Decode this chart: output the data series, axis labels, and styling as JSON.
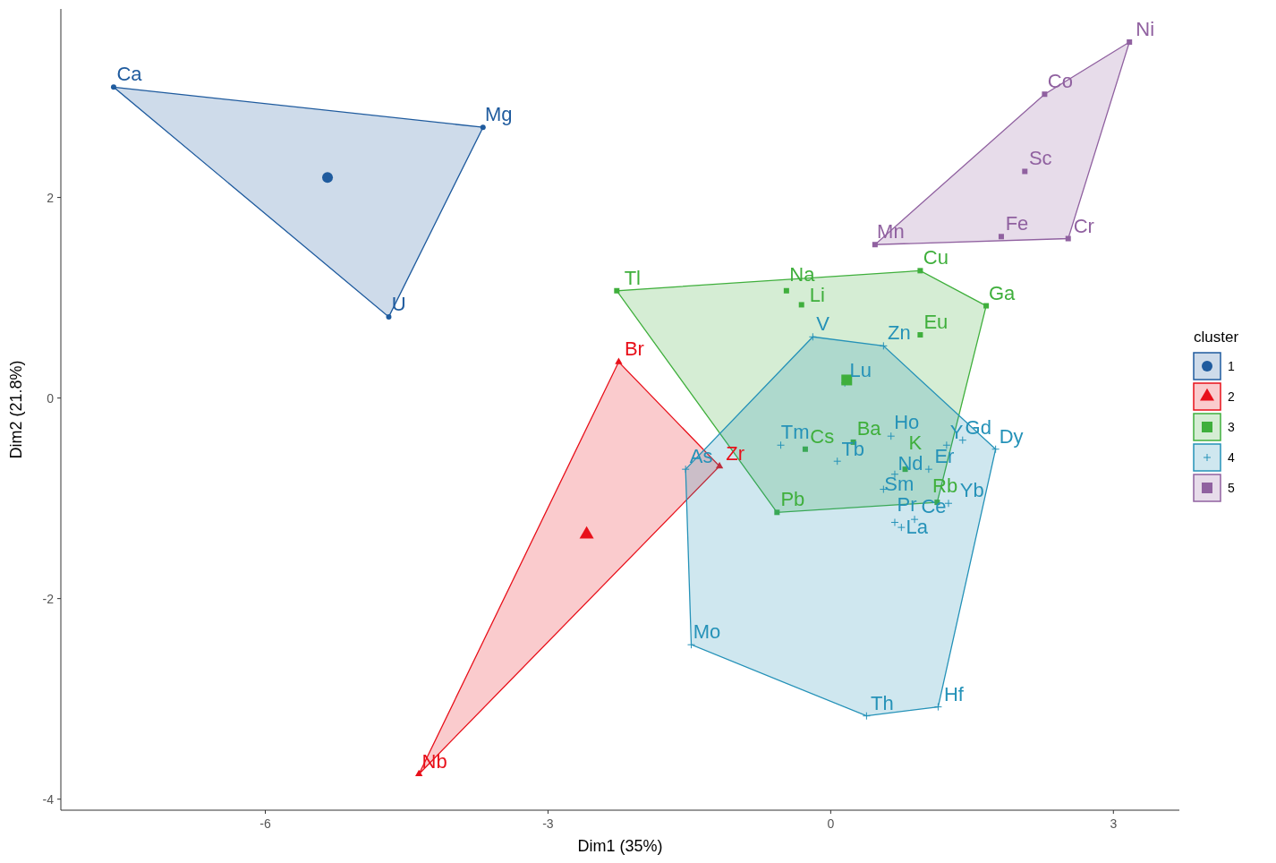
{
  "chart_data": {
    "type": "scatter",
    "xlabel": "Dim1 (35%)",
    "ylabel": "Dim2 (21.8%)",
    "legend_title": "cluster",
    "legend": "right",
    "grid": false,
    "xlim": [
      -8.17,
      3.7
    ],
    "ylim": [
      -4.11,
      3.88
    ],
    "xticks": [
      -6,
      -3,
      0,
      3
    ],
    "yticks": [
      -4,
      -2,
      0,
      2
    ],
    "series": [
      {
        "name": "1",
        "color": "#1f5b9e",
        "marker": "circle",
        "x": [
          -7.61,
          -3.69,
          -4.69
        ],
        "values": [
          3.1,
          2.7,
          0.81
        ],
        "value_labels": [
          "Ca",
          "Mg",
          "U"
        ]
      },
      {
        "name": "2",
        "color": "#e8101a",
        "marker": "triangle",
        "x": [
          -2.25,
          -1.18,
          -4.37
        ],
        "values": [
          0.36,
          -0.68,
          -3.75
        ],
        "value_labels": [
          "Br",
          "Zr",
          "Nb"
        ]
      },
      {
        "name": "3",
        "color": "#3faf3c",
        "marker": "square",
        "x": [
          -2.27,
          -0.47,
          -0.31,
          0.95,
          1.65,
          0.95,
          -0.27,
          0.24,
          0.79,
          1.13,
          -0.57
        ],
        "values": [
          1.07,
          1.07,
          0.93,
          1.27,
          0.92,
          0.63,
          -0.51,
          -0.44,
          -0.71,
          -1.04,
          -1.14
        ],
        "value_labels": [
          "Tl",
          "Na",
          "Li",
          "Cu",
          "Ga",
          "Eu",
          "Cs",
          "Ba",
          "K",
          "Rb",
          "Pb"
        ]
      },
      {
        "name": "4",
        "color": "#2592b8",
        "marker": "cross",
        "x": [
          -0.19,
          0.56,
          1.4,
          1.75,
          1.23,
          0.64,
          -0.53,
          0.07,
          0.15,
          0.56,
          0.68,
          1.04,
          -1.54,
          1.25,
          0.68,
          0.89,
          0.75,
          -1.48,
          0.38,
          1.14
        ],
        "values": [
          0.61,
          0.52,
          -0.42,
          -0.51,
          -0.47,
          -0.38,
          -0.47,
          -0.63,
          0.15,
          -0.91,
          -0.76,
          -0.71,
          -0.71,
          -1.05,
          -1.24,
          -1.21,
          -1.29,
          -2.46,
          -3.17,
          -3.08
        ],
        "value_labels": [
          "V",
          "Zn",
          "Gd",
          "Dy",
          "Y",
          "Ho",
          "Tm",
          "Tb",
          "Lu",
          "Sm",
          "Nd",
          "Er",
          "As",
          "Yb",
          "Pr",
          "Ce",
          "La",
          "Mo",
          "Th",
          "Hf"
        ]
      },
      {
        "name": "5",
        "color": "#9061a0",
        "marker": "square",
        "x": [
          3.17,
          2.27,
          2.06,
          0.47,
          1.81,
          2.52
        ],
        "values": [
          3.55,
          3.03,
          2.26,
          1.53,
          1.61,
          1.59
        ],
        "value_labels": [
          "Ni",
          "Co",
          "Sc",
          "Mn",
          "Fe",
          "Cr"
        ]
      },
      {
        "type": "scatter",
        "marker": "circle",
        "x": [
          -5.34
        ],
        "values": [
          2.2
        ],
        "color": "#1f5b9e"
      },
      {
        "type": "scatter",
        "marker": "triangle",
        "x": [
          -2.59
        ],
        "values": [
          -1.36
        ],
        "color": "#e8101a"
      },
      {
        "type": "scatter",
        "marker": "square",
        "x": [
          0.17
        ],
        "values": [
          0.18
        ],
        "color": "#3faf3c"
      }
    ]
  }
}
